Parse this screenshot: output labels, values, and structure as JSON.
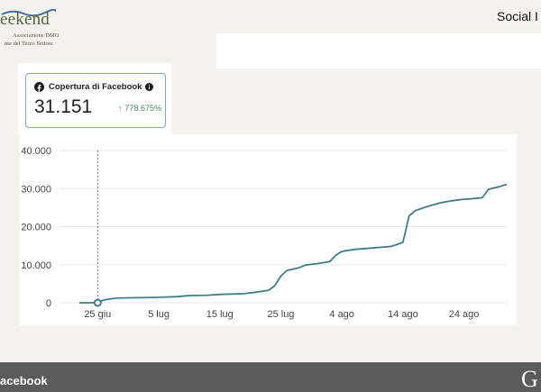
{
  "logo": {
    "brand": "eekend",
    "line1": "Associazione DMO",
    "line2": "nte del Terzo Settore"
  },
  "header": {
    "title": "Social I"
  },
  "metric": {
    "icon": "facebook-icon",
    "info_icon": "info-icon",
    "label": "Copertura di Facebook",
    "value": "31.151",
    "delta_arrow": "↑",
    "delta": "778.675%",
    "delta_color": "#3f8d5a",
    "border_color": "#7fa4c9"
  },
  "chart_data": {
    "type": "line",
    "y_ticks": [
      "40.000",
      "30.000",
      "20.000",
      "10.000",
      "0"
    ],
    "ylim": [
      0,
      40000
    ],
    "x_ticks": [
      "25 giu",
      "5 lug",
      "15 lug",
      "25 lug",
      "4 ago",
      "14 ago",
      "24 ago"
    ],
    "x_start": "2023-06-22",
    "x_end": "2023-08-31",
    "marker_date": "2023-06-25",
    "grid": true,
    "line_color": "#3b7f8c",
    "series": [
      {
        "points": [
          [
            "2023-06-22",
            0
          ],
          [
            "2023-06-24",
            0
          ],
          [
            "2023-06-25",
            150
          ],
          [
            "2023-06-26",
            700
          ],
          [
            "2023-06-27",
            1000
          ],
          [
            "2023-06-28",
            1200
          ],
          [
            "2023-06-30",
            1300
          ],
          [
            "2023-07-04",
            1400
          ],
          [
            "2023-07-08",
            1600
          ],
          [
            "2023-07-10",
            1900
          ],
          [
            "2023-07-13",
            2000
          ],
          [
            "2023-07-15",
            2200
          ],
          [
            "2023-07-17",
            2300
          ],
          [
            "2023-07-19",
            2400
          ],
          [
            "2023-07-21",
            2800
          ],
          [
            "2023-07-23",
            3300
          ],
          [
            "2023-07-24",
            4500
          ],
          [
            "2023-07-25",
            7000
          ],
          [
            "2023-07-26",
            8500
          ],
          [
            "2023-07-28",
            9200
          ],
          [
            "2023-07-29",
            9900
          ],
          [
            "2023-07-31",
            10300
          ],
          [
            "2023-08-02",
            10800
          ],
          [
            "2023-08-03",
            12500
          ],
          [
            "2023-08-04",
            13500
          ],
          [
            "2023-08-06",
            14000
          ],
          [
            "2023-08-09",
            14400
          ],
          [
            "2023-08-12",
            14800
          ],
          [
            "2023-08-13",
            15300
          ],
          [
            "2023-08-14",
            15900
          ],
          [
            "2023-08-15",
            22800
          ],
          [
            "2023-08-16",
            24200
          ],
          [
            "2023-08-18",
            25300
          ],
          [
            "2023-08-20",
            26200
          ],
          [
            "2023-08-22",
            26800
          ],
          [
            "2023-08-24",
            27200
          ],
          [
            "2023-08-25",
            27300
          ],
          [
            "2023-08-27",
            27600
          ],
          [
            "2023-08-28",
            29800
          ],
          [
            "2023-08-29",
            30200
          ],
          [
            "2023-08-30",
            30600
          ],
          [
            "2023-08-31",
            31100
          ]
        ]
      }
    ]
  },
  "footer": {
    "text": "acebook",
    "mark": "G"
  }
}
